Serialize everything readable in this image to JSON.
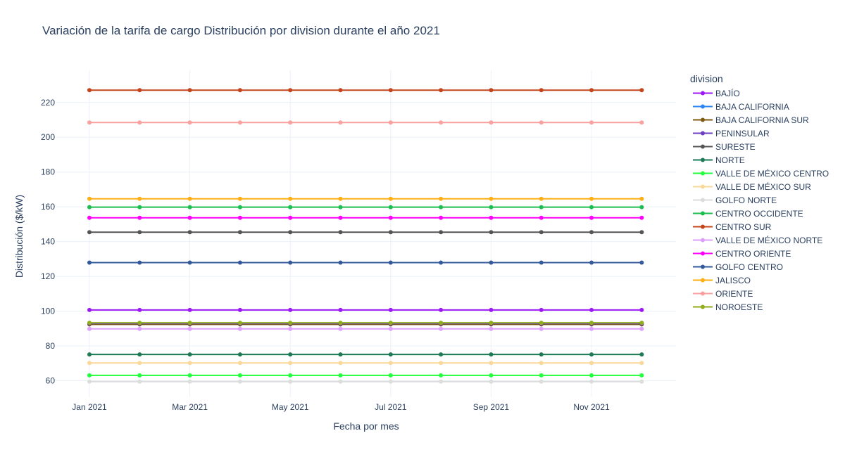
{
  "chart_data": {
    "type": "line",
    "title": "Variación de la tarifa de cargo Distribución por division durante el año 2021",
    "xlabel": "Fecha por mes",
    "ylabel": "Distribución ($/kW)",
    "x": [
      "2021-01",
      "2021-02",
      "2021-03",
      "2021-04",
      "2021-05",
      "2021-06",
      "2021-07",
      "2021-08",
      "2021-09",
      "2021-10",
      "2021-11",
      "2021-12"
    ],
    "x_tick_values": [
      "2021-01",
      "2021-03",
      "2021-05",
      "2021-07",
      "2021-09",
      "2021-11"
    ],
    "x_tick_labels": [
      "Jan 2021",
      "Mar 2021",
      "May 2021",
      "Jul 2021",
      "Sep 2021",
      "Nov 2021"
    ],
    "ylim": [
      50.5,
      238.5
    ],
    "y_ticks": [
      60,
      80,
      100,
      120,
      140,
      160,
      180,
      200,
      220
    ],
    "grid": true,
    "legend_title": "division",
    "legend_position": "right",
    "series": [
      {
        "name": "BAJÍO",
        "color": "#9b19f5",
        "values": [
          100.7,
          100.7,
          100.7,
          100.7,
          100.7,
          100.7,
          100.7,
          100.7,
          100.7,
          100.7,
          100.7,
          100.7
        ]
      },
      {
        "name": "BAJA CALIFORNIA",
        "color": "#2f86f6",
        "values": [
          92.6,
          92.6,
          92.6,
          92.6,
          92.6,
          92.6,
          92.6,
          92.6,
          92.6,
          92.6,
          92.6,
          92.6
        ]
      },
      {
        "name": "BAJA CALIFORNIA SUR",
        "color": "#7f5b12",
        "values": [
          92.4,
          92.4,
          92.4,
          92.4,
          92.4,
          92.4,
          92.4,
          92.4,
          92.4,
          92.4,
          92.4,
          92.4
        ]
      },
      {
        "name": "PENINSULAR",
        "color": "#6b3fc0",
        "values": [
          92.9,
          92.9,
          92.9,
          92.9,
          92.9,
          92.9,
          92.9,
          92.9,
          92.9,
          92.9,
          92.9,
          92.9
        ]
      },
      {
        "name": "SURESTE",
        "color": "#555555",
        "values": [
          145.4,
          145.4,
          145.4,
          145.4,
          145.4,
          145.4,
          145.4,
          145.4,
          145.4,
          145.4,
          145.4,
          145.4
        ]
      },
      {
        "name": "NORTE",
        "color": "#1d7a55",
        "values": [
          75.1,
          75.1,
          75.1,
          75.1,
          75.1,
          75.1,
          75.1,
          75.1,
          75.1,
          75.1,
          75.1,
          75.1
        ]
      },
      {
        "name": "VALLE DE MÉXICO CENTRO",
        "color": "#22ff3c",
        "values": [
          63.1,
          63.1,
          63.1,
          63.1,
          63.1,
          63.1,
          63.1,
          63.1,
          63.1,
          63.1,
          63.1,
          63.1
        ]
      },
      {
        "name": "VALLE DE MÉXICO SUR",
        "color": "#fbd89a",
        "values": [
          70.2,
          70.2,
          70.2,
          70.2,
          70.2,
          70.2,
          70.2,
          70.2,
          70.2,
          70.2,
          70.2,
          70.2
        ]
      },
      {
        "name": "GOLFO NORTE",
        "color": "#dcdcdc",
        "values": [
          59.5,
          59.5,
          59.5,
          59.5,
          59.5,
          59.5,
          59.5,
          59.5,
          59.5,
          59.5,
          59.5,
          59.5
        ]
      },
      {
        "name": "CENTRO OCCIDENTE",
        "color": "#1cbe4f",
        "values": [
          159.8,
          159.8,
          159.8,
          159.8,
          159.8,
          159.8,
          159.8,
          159.8,
          159.8,
          159.8,
          159.8,
          159.8
        ]
      },
      {
        "name": "CENTRO SUR",
        "color": "#c4451c",
        "values": [
          227.1,
          227.1,
          227.1,
          227.1,
          227.1,
          227.1,
          227.1,
          227.1,
          227.1,
          227.1,
          227.1,
          227.1
        ]
      },
      {
        "name": "VALLE DE MÉXICO NORTE",
        "color": "#dea0fd",
        "values": [
          89.8,
          89.8,
          89.8,
          89.8,
          89.8,
          89.8,
          89.8,
          89.8,
          89.8,
          89.8,
          89.8,
          89.8
        ]
      },
      {
        "name": "CENTRO ORIENTE",
        "color": "#fe00fa",
        "values": [
          153.7,
          153.7,
          153.7,
          153.7,
          153.7,
          153.7,
          153.7,
          153.7,
          153.7,
          153.7,
          153.7,
          153.7
        ]
      },
      {
        "name": "GOLFO CENTRO",
        "color": "#325a9b",
        "values": [
          127.9,
          127.9,
          127.9,
          127.9,
          127.9,
          127.9,
          127.9,
          127.9,
          127.9,
          127.9,
          127.9,
          127.9
        ]
      },
      {
        "name": "JALISCO",
        "color": "#feaf16",
        "values": [
          164.6,
          164.6,
          164.6,
          164.6,
          164.6,
          164.6,
          164.6,
          164.6,
          164.6,
          164.6,
          164.6,
          164.6
        ]
      },
      {
        "name": "ORIENTE",
        "color": "#f8a19f",
        "values": [
          208.5,
          208.5,
          208.5,
          208.5,
          208.5,
          208.5,
          208.5,
          208.5,
          208.5,
          208.5,
          208.5,
          208.5
        ]
      },
      {
        "name": "NOROESTE",
        "color": "#90ad1c",
        "values": [
          93.3,
          93.3,
          93.3,
          93.3,
          93.3,
          93.3,
          93.3,
          93.3,
          93.3,
          93.3,
          93.3,
          93.3
        ]
      }
    ]
  }
}
